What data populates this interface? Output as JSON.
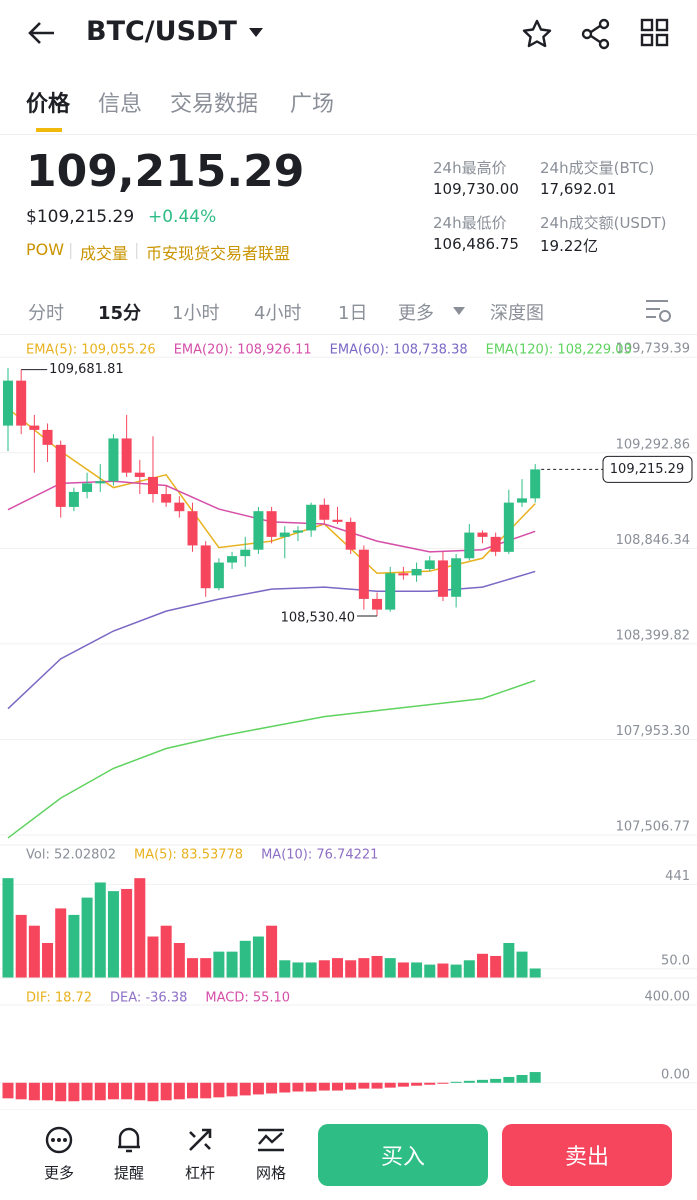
{
  "header": {
    "title": "BTC/USDT"
  },
  "tabs": [
    "价格",
    "信息",
    "交易数据",
    "广场"
  ],
  "ticker": {
    "price": "109,215.29",
    "fiat": "$109,215.29",
    "change": "+0.44%",
    "tags": [
      "POW",
      "成交量",
      "币安现货交易者联盟"
    ]
  },
  "stats": [
    {
      "label": "24h最高价",
      "value": "109,730.00"
    },
    {
      "label": "24h成交量(BTC)",
      "value": "17,692.01"
    },
    {
      "label": "24h最低价",
      "value": "106,486.75"
    },
    {
      "label": "24h成交额(USDT)",
      "value": "19.22亿"
    }
  ],
  "intervals": [
    "分时",
    "15分",
    "1小时",
    "4小时",
    "1日",
    "更多",
    "深度图"
  ],
  "chart_data": [
    {
      "type": "candlestick",
      "up_color": "#2ebd85",
      "down_color": "#f6465d",
      "grid": true,
      "open": [
        109420,
        109630,
        109420,
        109400,
        109330,
        109040,
        109110,
        109150,
        109160,
        109360,
        109200,
        109180,
        109100,
        109060,
        109020,
        108860,
        108660,
        108780,
        108810,
        108840,
        109020,
        108900,
        108920,
        108930,
        109050,
        108980,
        108970,
        108840,
        108610,
        108560,
        108730,
        108720,
        108750,
        108790,
        108620,
        108800,
        108920,
        108900,
        108830,
        109060,
        109080
      ],
      "high": [
        109690,
        109681.81,
        109470,
        109430,
        109350,
        109130,
        109200,
        109240,
        109380,
        109470,
        109260,
        109370,
        109140,
        109090,
        109060,
        108880,
        108800,
        108830,
        108900,
        109040,
        109040,
        108950,
        108950,
        109060,
        109080,
        109040,
        108990,
        108860,
        108640,
        108760,
        108760,
        108780,
        108810,
        108830,
        108820,
        108960,
        108930,
        108920,
        109120,
        109170,
        109240
      ],
      "low": [
        109300,
        109380,
        109200,
        109250,
        108990,
        109020,
        109080,
        109110,
        109140,
        109180,
        109100,
        109060,
        109040,
        108990,
        108830,
        108620,
        108650,
        108750,
        108760,
        108820,
        108870,
        108800,
        108880,
        108900,
        108960,
        108960,
        108820,
        108560,
        108530.4,
        108550,
        108700,
        108690,
        108740,
        108600,
        108570,
        108790,
        108870,
        108810,
        108820,
        109040,
        109060
      ],
      "close": [
        109630,
        109420,
        109400,
        109330,
        109040,
        109110,
        109150,
        109160,
        109360,
        109200,
        109180,
        109100,
        109060,
        109020,
        108860,
        108660,
        108780,
        108810,
        108840,
        109020,
        108900,
        108920,
        108930,
        109050,
        108980,
        108970,
        108840,
        108610,
        108560,
        108730,
        108720,
        108750,
        108790,
        108620,
        108800,
        108920,
        108900,
        108830,
        109060,
        109080,
        109215.29
      ],
      "ylim": [
        107460,
        109820
      ],
      "yticks": [
        {
          "value": 107506.77,
          "label": "107,506.77"
        },
        {
          "value": 107953.3,
          "label": "107,953.30"
        },
        {
          "value": 108399.82,
          "label": "108,399.82"
        },
        {
          "value": 108846.34,
          "label": "108,846.34"
        },
        {
          "value": 109292.86,
          "label": "109,292.86"
        },
        {
          "value": 109739.39,
          "label": "109,739.39"
        }
      ],
      "series": [
        {
          "name": "EMA(5): 109,055.26",
          "color": "#e8b21e",
          "x": [
            0,
            4,
            8,
            12,
            16,
            20,
            24,
            28,
            32,
            36,
            40
          ],
          "values": [
            109500,
            109300,
            109130,
            109190,
            108850,
            108880,
            108960,
            108730,
            108740,
            108800,
            109055.26
          ]
        },
        {
          "name": "EMA(20): 108,926.11",
          "color": "#d54fa8",
          "x": [
            0,
            4,
            8,
            12,
            16,
            20,
            24,
            28,
            32,
            36,
            40
          ],
          "values": [
            109027,
            109150,
            109160,
            109140,
            109030,
            108970,
            108960,
            108880,
            108830,
            108840,
            108926.11
          ]
        },
        {
          "name": "EMA(60): 108,738.38",
          "color": "#7b68c4",
          "x": [
            0,
            4,
            8,
            12,
            16,
            20,
            24,
            28,
            32,
            36,
            40
          ],
          "values": [
            108097,
            108330,
            108460,
            108553,
            108609,
            108656,
            108665,
            108646,
            108646,
            108665,
            108738.38
          ]
        },
        {
          "name": "EMA(120): 108,229.03",
          "color": "#5fd35f",
          "x": [
            0,
            4,
            8,
            12,
            16,
            20,
            24,
            28,
            32,
            36,
            40
          ],
          "values": [
            107493,
            107679,
            107818,
            107911,
            107967,
            108014,
            108060,
            108088,
            108116,
            108144,
            108229.03
          ]
        }
      ],
      "annotations": [
        {
          "x": 1,
          "value": 109681.81,
          "label": "109,681.81"
        },
        {
          "x": 28,
          "value": 108530.4,
          "label": "108,530.40"
        },
        {
          "x": 40,
          "value": 109215.29,
          "label": "109,215.29"
        }
      ]
    },
    {
      "type": "bar",
      "legend": [
        {
          "name": "Vol: 52.02802",
          "color": "#8a8f98"
        },
        {
          "name": "MA(5): 83.53778",
          "color": "#e8b21e"
        },
        {
          "name": "MA(10): 76.74221",
          "color": "#8e6fc5"
        }
      ],
      "values": [
        470,
        300,
        250,
        170,
        330,
        300,
        380,
        450,
        410,
        420,
        470,
        200,
        250,
        170,
        100,
        100,
        130,
        130,
        180,
        200,
        250,
        90,
        80,
        80,
        90,
        100,
        90,
        100,
        110,
        100,
        80,
        80,
        70,
        75,
        70,
        90,
        120,
        110,
        170,
        130,
        52.02802
      ],
      "ylim": [
        8,
        480
      ],
      "yticks": [
        {
          "value": 50,
          "label": "50.0"
        },
        441
      ]
    },
    {
      "type": "bar",
      "legend": [
        {
          "name": "DIF: 18.72",
          "color": "#e8b21e"
        },
        {
          "name": "DEA: -36.38",
          "color": "#8e6fc5"
        },
        {
          "name": "MACD: 55.10",
          "color": "#d54fa8"
        }
      ],
      "values": [
        -80,
        -85,
        -90,
        -90,
        -95,
        -95,
        -90,
        -90,
        -85,
        -85,
        -90,
        -95,
        -90,
        -85,
        -80,
        -80,
        -75,
        -70,
        -65,
        -60,
        -55,
        -50,
        -45,
        -45,
        -40,
        -40,
        -35,
        -30,
        -30,
        -25,
        -20,
        -15,
        -10,
        -5,
        5,
        10,
        15,
        20,
        30,
        40,
        55.1
      ],
      "ylim": [
        -140,
        477
      ],
      "yticks": [
        {
          "value": 0,
          "label": "0.00"
        },
        {
          "value": 400,
          "label": "400.00"
        }
      ]
    }
  ],
  "actions": {
    "tools": [
      "更多",
      "提醒",
      "杠杆",
      "网格"
    ],
    "buy": "买入",
    "sell": "卖出"
  }
}
